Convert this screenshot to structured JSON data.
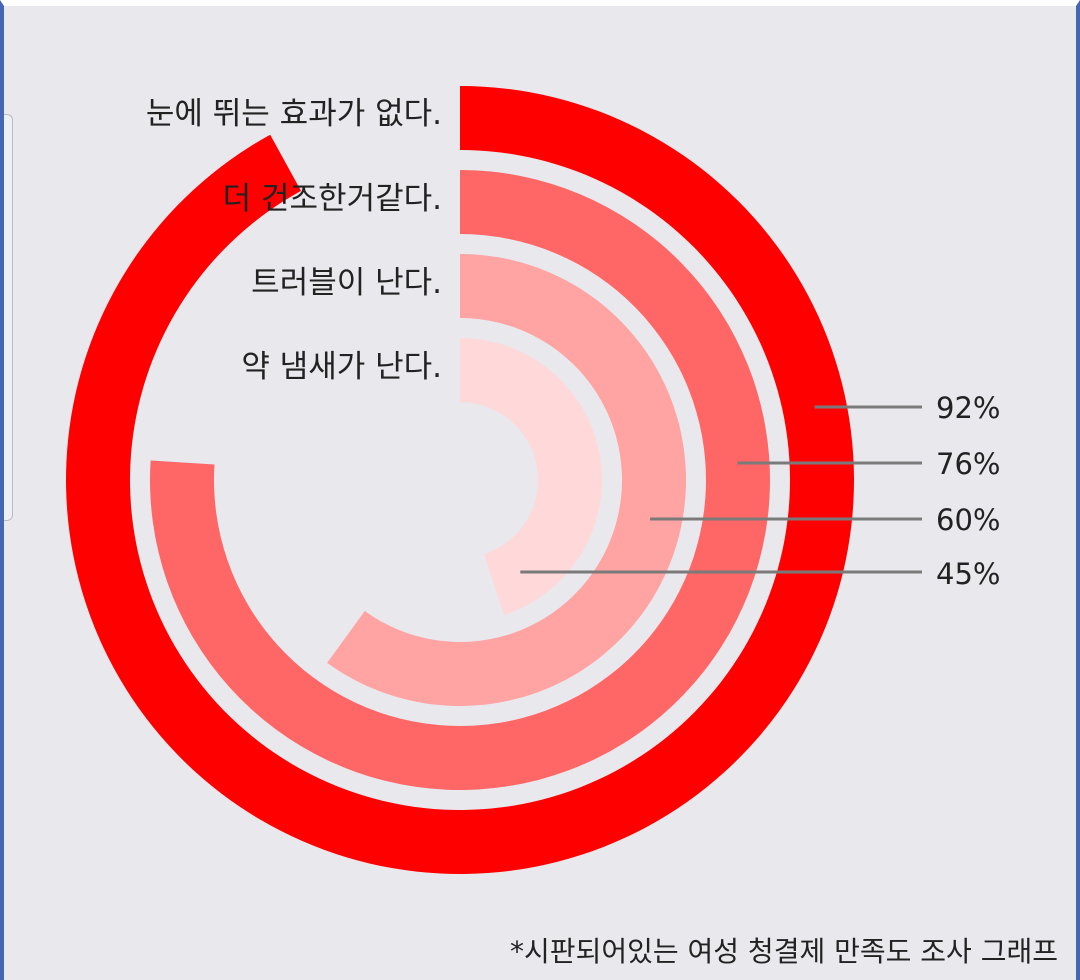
{
  "chart_data": {
    "type": "radial-bar",
    "categories": [
      "눈에 뛰는 효과가 없다.",
      "더 건조한거같다.",
      "트러블이 난다.",
      "약 냄새가 난다."
    ],
    "values": [
      92,
      76,
      60,
      45
    ],
    "value_labels": [
      "92%",
      "76%",
      "60%",
      "45%"
    ],
    "colors": [
      "#ff0000",
      "#ff6666",
      "#ffa3a3",
      "#ffd9d9"
    ],
    "max": 100
  },
  "footnote": "*시판되어있는 여성 청결제 만족도 조사 그래프",
  "background": "#e9e8ed"
}
